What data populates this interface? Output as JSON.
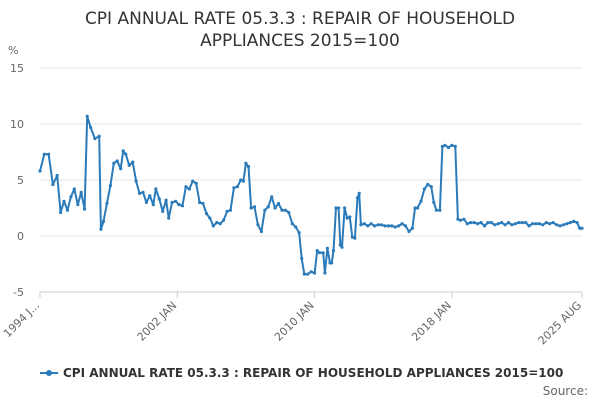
{
  "chart_data": {
    "type": "line",
    "title_lines": [
      "CPI ANNUAL RATE 05.3.3 : REPAIR OF HOUSEHOLD",
      "APPLIANCES 2015=100"
    ],
    "ylabel": "%",
    "ylim": [
      -5,
      15
    ],
    "yticks": [
      15,
      10,
      5,
      0,
      -5
    ],
    "x_range": [
      "1994 JAN",
      "2025 AUG"
    ],
    "x_tick_labels": [
      {
        "value": 1994.0,
        "label": "1994 J..."
      },
      {
        "value": 2002.0,
        "label": "2002 JAN"
      },
      {
        "value": 2010.0,
        "label": "2010 JAN"
      },
      {
        "value": 2018.0,
        "label": "2018 JAN"
      },
      {
        "value": 2025.583,
        "label": "2025 AUG"
      }
    ],
    "grid": true,
    "legend": "bottom",
    "series": [
      {
        "name": "CPI ANNUAL RATE 05.3.3 : REPAIR OF HOUSEHOLD APPLIANCES 2015=100",
        "color": "#2b7bba",
        "points": [
          [
            1994.0,
            5.8
          ],
          [
            1994.25,
            7.3
          ],
          [
            1994.5,
            7.3
          ],
          [
            1994.75,
            4.6
          ],
          [
            1995.0,
            5.4
          ],
          [
            1995.2,
            2.1
          ],
          [
            1995.4,
            3.1
          ],
          [
            1995.6,
            2.3
          ],
          [
            1995.8,
            3.5
          ],
          [
            1996.0,
            4.2
          ],
          [
            1996.2,
            2.8
          ],
          [
            1996.4,
            3.9
          ],
          [
            1996.6,
            2.4
          ],
          [
            1996.75,
            10.7
          ],
          [
            1996.95,
            9.7
          ],
          [
            1997.2,
            8.7
          ],
          [
            1997.45,
            8.9
          ],
          [
            1997.55,
            0.6
          ],
          [
            1997.7,
            1.3
          ],
          [
            1997.9,
            2.9
          ],
          [
            1998.1,
            4.5
          ],
          [
            1998.3,
            6.5
          ],
          [
            1998.5,
            6.7
          ],
          [
            1998.7,
            6.0
          ],
          [
            1998.85,
            7.6
          ],
          [
            1999.0,
            7.3
          ],
          [
            1999.2,
            6.3
          ],
          [
            1999.4,
            6.6
          ],
          [
            1999.6,
            4.9
          ],
          [
            1999.8,
            3.8
          ],
          [
            2000.0,
            3.9
          ],
          [
            2000.2,
            3.0
          ],
          [
            2000.4,
            3.6
          ],
          [
            2000.6,
            2.8
          ],
          [
            2000.75,
            4.2
          ],
          [
            2000.95,
            3.3
          ],
          [
            2001.15,
            2.2
          ],
          [
            2001.35,
            3.2
          ],
          [
            2001.5,
            1.6
          ],
          [
            2001.7,
            3.0
          ],
          [
            2001.9,
            3.1
          ],
          [
            2002.1,
            2.8
          ],
          [
            2002.3,
            2.7
          ],
          [
            2002.5,
            4.4
          ],
          [
            2002.7,
            4.2
          ],
          [
            2002.9,
            4.9
          ],
          [
            2003.1,
            4.7
          ],
          [
            2003.3,
            3.0
          ],
          [
            2003.5,
            2.9
          ],
          [
            2003.7,
            2.0
          ],
          [
            2003.9,
            1.6
          ],
          [
            2004.1,
            0.9
          ],
          [
            2004.3,
            1.2
          ],
          [
            2004.5,
            1.1
          ],
          [
            2004.7,
            1.4
          ],
          [
            2004.9,
            2.2
          ],
          [
            2005.1,
            2.3
          ],
          [
            2005.3,
            4.3
          ],
          [
            2005.5,
            4.4
          ],
          [
            2005.7,
            5.0
          ],
          [
            2005.85,
            4.9
          ],
          [
            2006.0,
            6.5
          ],
          [
            2006.15,
            6.2
          ],
          [
            2006.3,
            2.5
          ],
          [
            2006.5,
            2.6
          ],
          [
            2006.7,
            1.0
          ],
          [
            2006.9,
            0.4
          ],
          [
            2007.1,
            2.3
          ],
          [
            2007.3,
            2.6
          ],
          [
            2007.5,
            3.5
          ],
          [
            2007.7,
            2.5
          ],
          [
            2007.9,
            2.9
          ],
          [
            2008.1,
            2.3
          ],
          [
            2008.3,
            2.3
          ],
          [
            2008.5,
            2.1
          ],
          [
            2008.7,
            1.1
          ],
          [
            2008.9,
            0.8
          ],
          [
            2009.1,
            0.3
          ],
          [
            2009.25,
            -2.0
          ],
          [
            2009.4,
            -3.4
          ],
          [
            2009.6,
            -3.4
          ],
          [
            2009.8,
            -3.2
          ],
          [
            2010.0,
            -3.3
          ],
          [
            2010.15,
            -1.3
          ],
          [
            2010.3,
            -1.5
          ],
          [
            2010.5,
            -1.5
          ],
          [
            2010.6,
            -3.3
          ],
          [
            2010.75,
            -1.1
          ],
          [
            2010.9,
            -2.4
          ],
          [
            2011.0,
            -2.4
          ],
          [
            2011.1,
            -1.3
          ],
          [
            2011.25,
            2.5
          ],
          [
            2011.4,
            2.5
          ],
          [
            2011.5,
            -0.8
          ],
          [
            2011.6,
            -1.0
          ],
          [
            2011.75,
            2.5
          ],
          [
            2011.9,
            1.6
          ],
          [
            2012.05,
            1.7
          ],
          [
            2012.2,
            -0.1
          ],
          [
            2012.35,
            -0.2
          ],
          [
            2012.5,
            3.4
          ],
          [
            2012.6,
            3.8
          ],
          [
            2012.7,
            1.0
          ],
          [
            2012.9,
            1.1
          ],
          [
            2013.1,
            0.9
          ],
          [
            2013.3,
            1.1
          ],
          [
            2013.5,
            0.9
          ],
          [
            2013.7,
            1.0
          ],
          [
            2013.9,
            1.0
          ],
          [
            2014.1,
            0.9
          ],
          [
            2014.3,
            0.9
          ],
          [
            2014.5,
            0.9
          ],
          [
            2014.7,
            0.8
          ],
          [
            2014.9,
            0.9
          ],
          [
            2015.1,
            1.1
          ],
          [
            2015.3,
            0.9
          ],
          [
            2015.5,
            0.4
          ],
          [
            2015.7,
            0.7
          ],
          [
            2015.85,
            2.5
          ],
          [
            2016.0,
            2.5
          ],
          [
            2016.2,
            3.1
          ],
          [
            2016.4,
            4.2
          ],
          [
            2016.6,
            4.6
          ],
          [
            2016.8,
            4.4
          ],
          [
            2016.95,
            3.0
          ],
          [
            2017.1,
            2.3
          ],
          [
            2017.3,
            2.3
          ],
          [
            2017.45,
            8.0
          ],
          [
            2017.6,
            8.1
          ],
          [
            2017.8,
            7.9
          ],
          [
            2018.0,
            8.1
          ],
          [
            2018.2,
            8.0
          ],
          [
            2018.35,
            1.5
          ],
          [
            2018.5,
            1.4
          ],
          [
            2018.7,
            1.5
          ],
          [
            2018.9,
            1.1
          ],
          [
            2019.1,
            1.2
          ],
          [
            2019.3,
            1.2
          ],
          [
            2019.5,
            1.1
          ],
          [
            2019.7,
            1.2
          ],
          [
            2019.9,
            0.9
          ],
          [
            2020.1,
            1.2
          ],
          [
            2020.3,
            1.2
          ],
          [
            2020.5,
            1.0
          ],
          [
            2020.7,
            1.1
          ],
          [
            2020.9,
            1.2
          ],
          [
            2021.1,
            1.0
          ],
          [
            2021.3,
            1.2
          ],
          [
            2021.5,
            1.0
          ],
          [
            2021.7,
            1.1
          ],
          [
            2021.9,
            1.2
          ],
          [
            2022.1,
            1.2
          ],
          [
            2022.3,
            1.2
          ],
          [
            2022.5,
            0.9
          ],
          [
            2022.7,
            1.1
          ],
          [
            2022.9,
            1.1
          ],
          [
            2023.1,
            1.1
          ],
          [
            2023.3,
            1.0
          ],
          [
            2023.5,
            1.2
          ],
          [
            2023.7,
            1.1
          ],
          [
            2023.9,
            1.2
          ],
          [
            2024.1,
            1.0
          ],
          [
            2024.3,
            0.9
          ],
          [
            2024.5,
            1.0
          ],
          [
            2024.7,
            1.1
          ],
          [
            2024.9,
            1.2
          ],
          [
            2025.1,
            1.3
          ],
          [
            2025.3,
            1.2
          ],
          [
            2025.45,
            0.7
          ],
          [
            2025.583,
            0.7
          ]
        ]
      }
    ]
  },
  "legend_label": "CPI ANNUAL RATE 05.3.3 : REPAIR OF HOUSEHOLD APPLIANCES 2015=100",
  "source_text": "Source:",
  "colors": {
    "series": "#2b7bba",
    "grid": "#e6e6e6",
    "axis": "#cccccc"
  }
}
